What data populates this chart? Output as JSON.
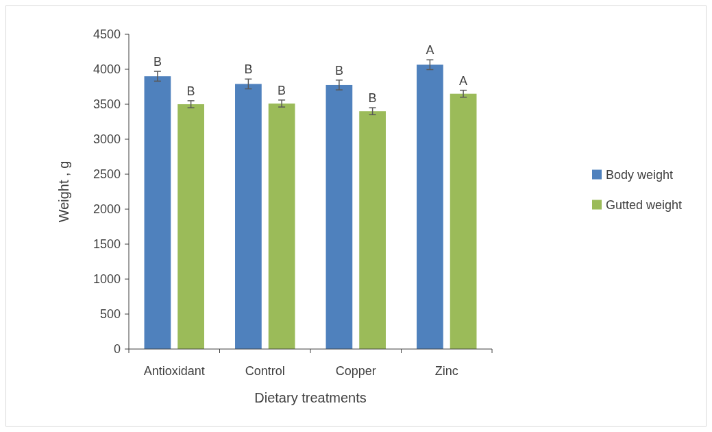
{
  "chart_data": {
    "type": "bar",
    "xlabel": "Dietary treatments",
    "ylabel": "Weight , g",
    "categories": [
      "Antioxidant",
      "Control",
      "Copper",
      "Zinc"
    ],
    "series": [
      {
        "name": "Body weight",
        "color": "#4f81bd",
        "values": [
          3900,
          3790,
          3775,
          4065
        ],
        "errors": [
          70,
          70,
          70,
          70
        ],
        "value_labels": [
          "B",
          "B",
          "B",
          "A"
        ]
      },
      {
        "name": "Gutted weight",
        "color": "#9bbb59",
        "values": [
          3500,
          3510,
          3400,
          3650
        ],
        "errors": [
          50,
          50,
          50,
          50
        ],
        "value_labels": [
          "B",
          "B",
          "B",
          "A"
        ]
      }
    ],
    "ylim": [
      0,
      4500
    ],
    "yticks": [
      0,
      500,
      1000,
      1500,
      2000,
      2500,
      3000,
      3500,
      4000,
      4500
    ],
    "grid": false,
    "legend": "right"
  }
}
